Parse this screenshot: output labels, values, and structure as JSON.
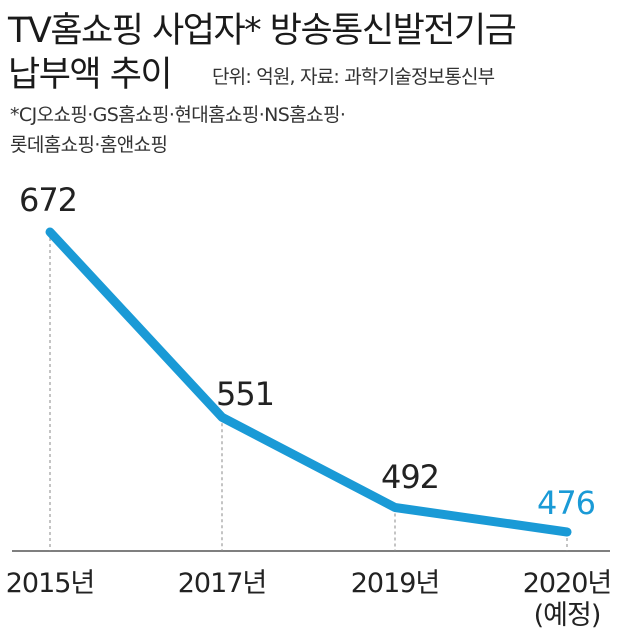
{
  "header": {
    "title_line1": "TV홈쇼핑 사업자* 방송통신발전기금",
    "title_line2": "납부액 추이",
    "unit_source": "단위: 억원, 자료: 과학기술정보통신부"
  },
  "footnote": {
    "line1": "*CJ오쇼핑·GS홈쇼핑·현대홈쇼핑·NS홈쇼핑·",
    "line2": "롯데홈쇼핑·홈앤쇼핑"
  },
  "colors": {
    "line": "#1a9ad6",
    "highlight_label": "#1a9ad6",
    "text": "#222222",
    "axis": "#333333",
    "guide": "#888888"
  },
  "chart_data": {
    "type": "line",
    "title": "TV홈쇼핑 사업자* 방송통신발전기금 납부액 추이",
    "xlabel": "",
    "ylabel": "",
    "unit": "억원",
    "categories": [
      "2015년",
      "2017년",
      "2019년",
      "2020년"
    ],
    "category_sublabels": [
      "",
      "",
      "",
      "(예정)"
    ],
    "values": [
      672,
      551,
      492,
      476
    ],
    "highlight_index": 3,
    "grid": false,
    "legend": "none"
  }
}
